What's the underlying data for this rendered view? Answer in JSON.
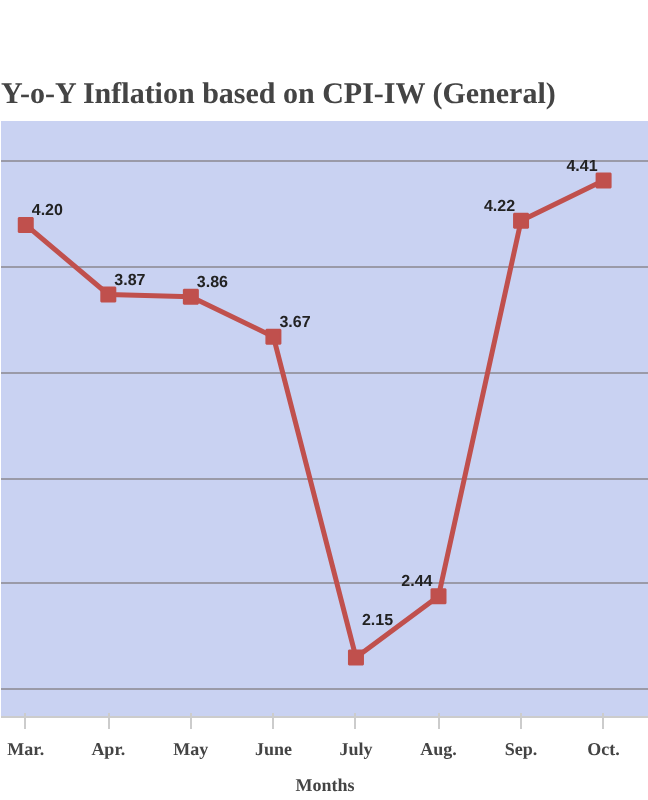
{
  "chart_data": {
    "type": "line",
    "title": "Y-o-Y Inflation based on CPI-IW (General)",
    "xlabel": "Months",
    "categories": [
      "Mar.",
      "Apr.",
      "May",
      "June",
      "July",
      "Aug.",
      "Sep.",
      "Oct."
    ],
    "series": [
      {
        "color": "#c0504d",
        "values": [
          4.2,
          3.87,
          3.86,
          3.67,
          2.15,
          2.44,
          4.22,
          4.41
        ],
        "value_labels": [
          "4.20",
          "3.87",
          "3.86",
          "3.67",
          "2.15",
          "2.44",
          "4.22",
          "4.41"
        ]
      }
    ],
    "grid": "y",
    "tick_labels": "x",
    "marker": "square",
    "line_style": "solid"
  }
}
